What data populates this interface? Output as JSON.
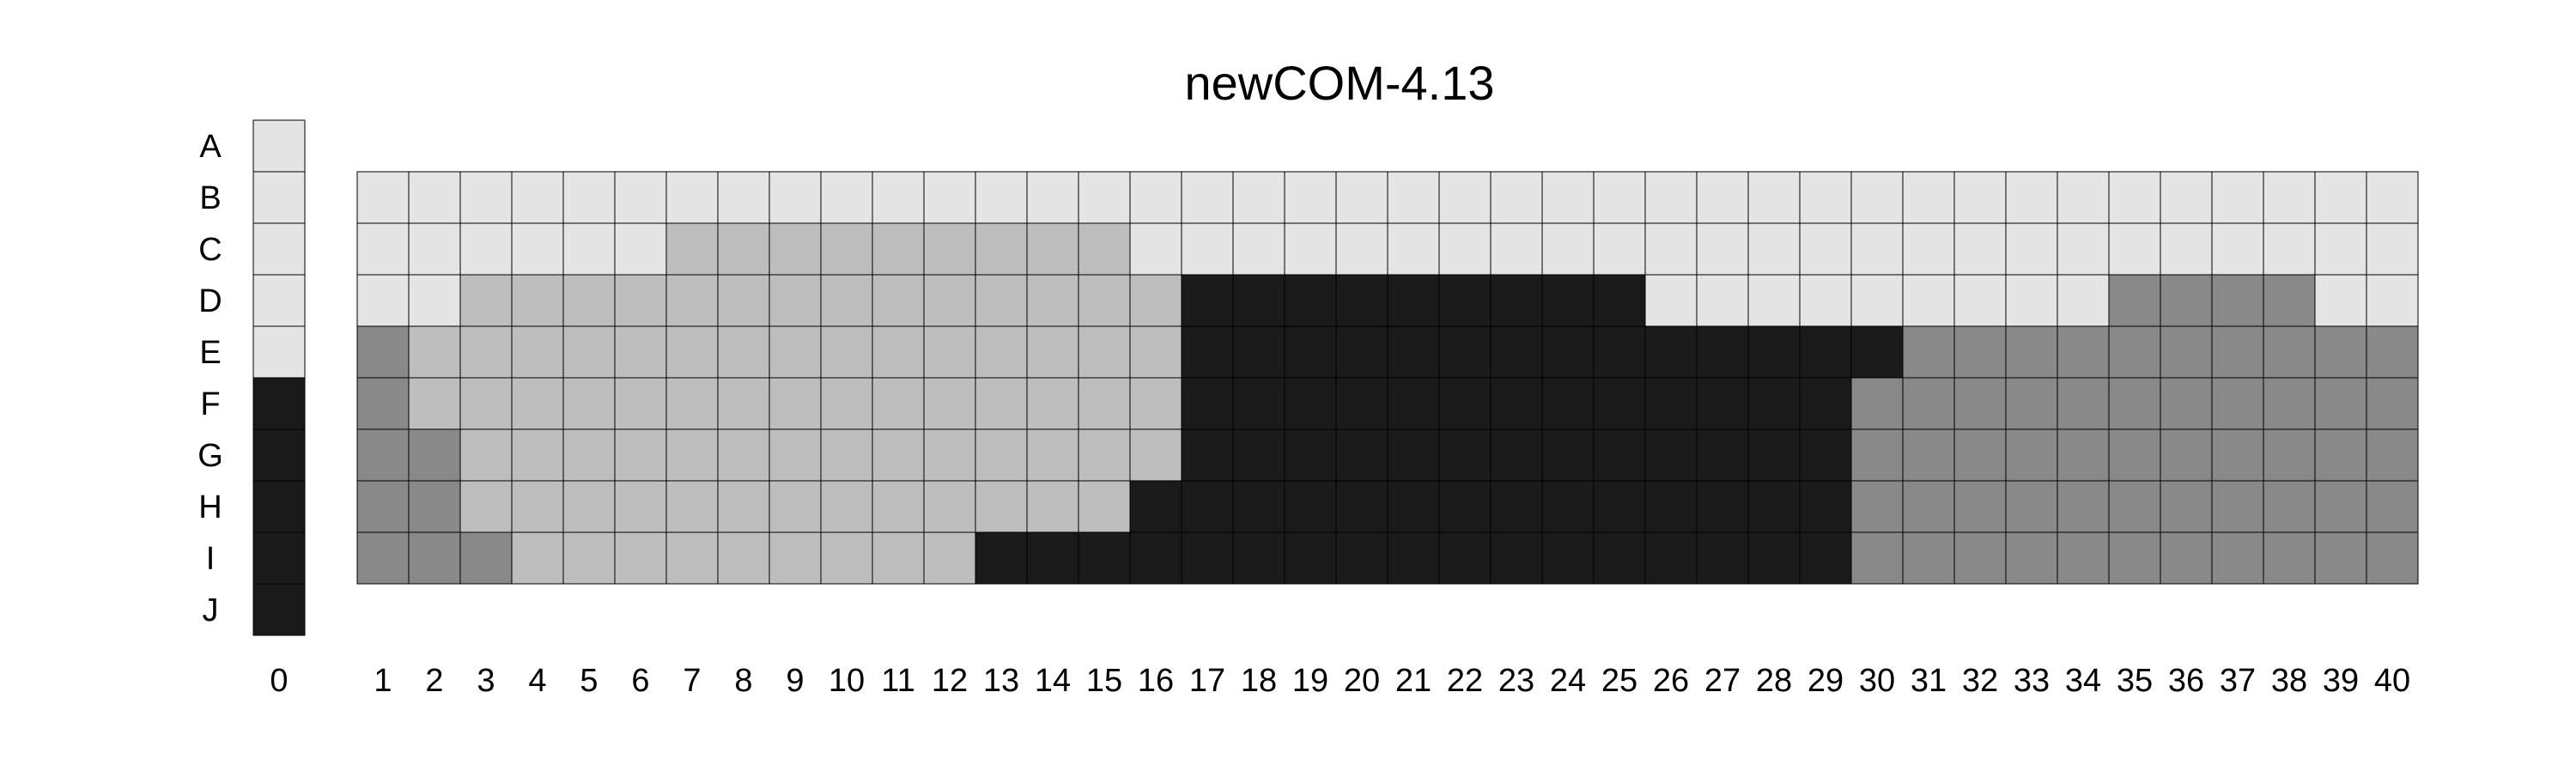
{
  "chart_data": {
    "type": "heatmap",
    "title": "newCOM-4.13",
    "row_labels": [
      "A",
      "B",
      "C",
      "D",
      "E",
      "F",
      "G",
      "H",
      "I",
      "J"
    ],
    "column_labels": [
      "0",
      "1",
      "2",
      "3",
      "4",
      "5",
      "6",
      "7",
      "8",
      "9",
      "10",
      "11",
      "12",
      "13",
      "14",
      "15",
      "16",
      "17",
      "18",
      "19",
      "20",
      "21",
      "22",
      "23",
      "24",
      "25",
      "26",
      "27",
      "28",
      "29",
      "30",
      "31",
      "32",
      "33",
      "34",
      "35",
      "36",
      "37",
      "38",
      "39",
      "40"
    ],
    "legend_column": {
      "column": "0",
      "rows": [
        "A",
        "B",
        "C",
        "D",
        "E",
        "F",
        "G",
        "H",
        "I",
        "J"
      ],
      "levels": [
        0,
        0,
        0,
        0,
        0,
        3,
        3,
        3,
        3,
        3
      ]
    },
    "grid": {
      "columns": [
        "1",
        "2",
        "3",
        "4",
        "5",
        "6",
        "7",
        "8",
        "9",
        "10",
        "11",
        "12",
        "13",
        "14",
        "15",
        "16",
        "17",
        "18",
        "19",
        "20",
        "21",
        "22",
        "23",
        "24",
        "25",
        "26",
        "27",
        "28",
        "29",
        "30",
        "31",
        "32",
        "33",
        "34",
        "35",
        "36",
        "37",
        "38",
        "39",
        "40"
      ],
      "rows": [
        "B",
        "C",
        "D",
        "E",
        "F",
        "G",
        "H",
        "I"
      ],
      "levels": [
        [
          0,
          0,
          0,
          0,
          0,
          0,
          0,
          0,
          0,
          0,
          0,
          0,
          0,
          0,
          0,
          0,
          0,
          0,
          0,
          0,
          0,
          0,
          0,
          0,
          0,
          0,
          0,
          0,
          0,
          0,
          0,
          0,
          0,
          0,
          0,
          0,
          0,
          0,
          0,
          0
        ],
        [
          0,
          0,
          0,
          0,
          0,
          0,
          1,
          1,
          1,
          1,
          1,
          1,
          1,
          1,
          1,
          0,
          0,
          0,
          0,
          0,
          0,
          0,
          0,
          0,
          0,
          0,
          0,
          0,
          0,
          0,
          0,
          0,
          0,
          0,
          0,
          0,
          0,
          0,
          0,
          0
        ],
        [
          0,
          0,
          1,
          1,
          1,
          1,
          1,
          1,
          1,
          1,
          1,
          1,
          1,
          1,
          1,
          1,
          3,
          3,
          3,
          3,
          3,
          3,
          3,
          3,
          3,
          0,
          0,
          0,
          0,
          0,
          0,
          0,
          0,
          0,
          2,
          2,
          2,
          2,
          0,
          0
        ],
        [
          2,
          1,
          1,
          1,
          1,
          1,
          1,
          1,
          1,
          1,
          1,
          1,
          1,
          1,
          1,
          1,
          3,
          3,
          3,
          3,
          3,
          3,
          3,
          3,
          3,
          3,
          3,
          3,
          3,
          3,
          2,
          2,
          2,
          2,
          2,
          2,
          2,
          2,
          2,
          2
        ],
        [
          2,
          1,
          1,
          1,
          1,
          1,
          1,
          1,
          1,
          1,
          1,
          1,
          1,
          1,
          1,
          1,
          3,
          3,
          3,
          3,
          3,
          3,
          3,
          3,
          3,
          3,
          3,
          3,
          3,
          2,
          2,
          2,
          2,
          2,
          2,
          2,
          2,
          2,
          2,
          2
        ],
        [
          2,
          2,
          1,
          1,
          1,
          1,
          1,
          1,
          1,
          1,
          1,
          1,
          1,
          1,
          1,
          1,
          3,
          3,
          3,
          3,
          3,
          3,
          3,
          3,
          3,
          3,
          3,
          3,
          3,
          2,
          2,
          2,
          2,
          2,
          2,
          2,
          2,
          2,
          2,
          2
        ],
        [
          2,
          2,
          1,
          1,
          1,
          1,
          1,
          1,
          1,
          1,
          1,
          1,
          1,
          1,
          1,
          3,
          3,
          3,
          3,
          3,
          3,
          3,
          3,
          3,
          3,
          3,
          3,
          3,
          3,
          2,
          2,
          2,
          2,
          2,
          2,
          2,
          2,
          2,
          2,
          2
        ],
        [
          2,
          2,
          2,
          1,
          1,
          1,
          1,
          1,
          1,
          1,
          1,
          1,
          3,
          3,
          3,
          3,
          3,
          3,
          3,
          3,
          3,
          3,
          3,
          3,
          3,
          3,
          3,
          3,
          3,
          2,
          2,
          2,
          2,
          2,
          2,
          2,
          2,
          2,
          2,
          2
        ]
      ]
    },
    "colors": [
      "#e5e5e5",
      "#bebebe",
      "#898989",
      "#1a1a1a"
    ],
    "legend": "none",
    "grid_lines": true
  }
}
